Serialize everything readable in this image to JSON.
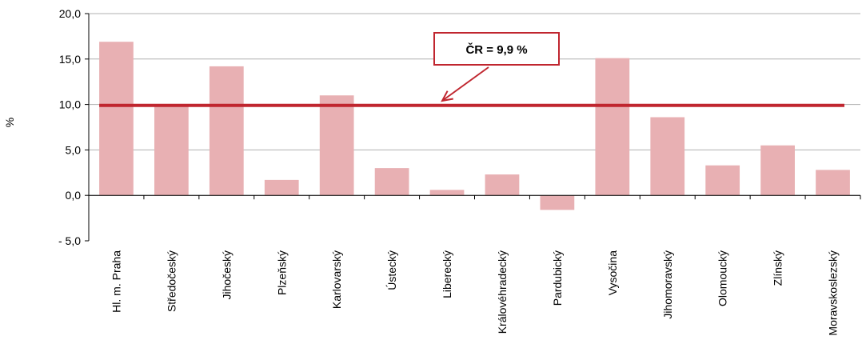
{
  "chart_data": {
    "type": "bar",
    "categories": [
      "Hl. m. Praha",
      "Středočeský",
      "Jihočeský",
      "Plzeňský",
      "Karlovarský",
      "Ústecký",
      "Liberecký",
      "Královéhradecký",
      "Pardubický",
      "Vysočina",
      "Jihomoravský",
      "Olomoucký",
      "Zlínský",
      "Moravskoslezský"
    ],
    "values": [
      16.9,
      10.0,
      14.2,
      1.7,
      11.0,
      3.0,
      0.6,
      2.3,
      -1.6,
      15.1,
      8.6,
      3.3,
      5.5,
      2.8
    ],
    "ylabel": "%",
    "ylim": [
      -5,
      20
    ],
    "yticks": [
      20,
      15,
      10,
      5,
      0,
      -5
    ],
    "ytick_labels": [
      "20,0",
      "15,0",
      "10,0",
      "5,0",
      "0,0",
      "- 5,0"
    ],
    "reference_line": {
      "value": 9.9,
      "label": "ČR = 9,9 %"
    },
    "grid": true,
    "colors": {
      "bar": "#e8b0b3",
      "reference_line": "#c0262f",
      "annotation": "#c0262f",
      "grid": "#b0b0b0"
    }
  }
}
